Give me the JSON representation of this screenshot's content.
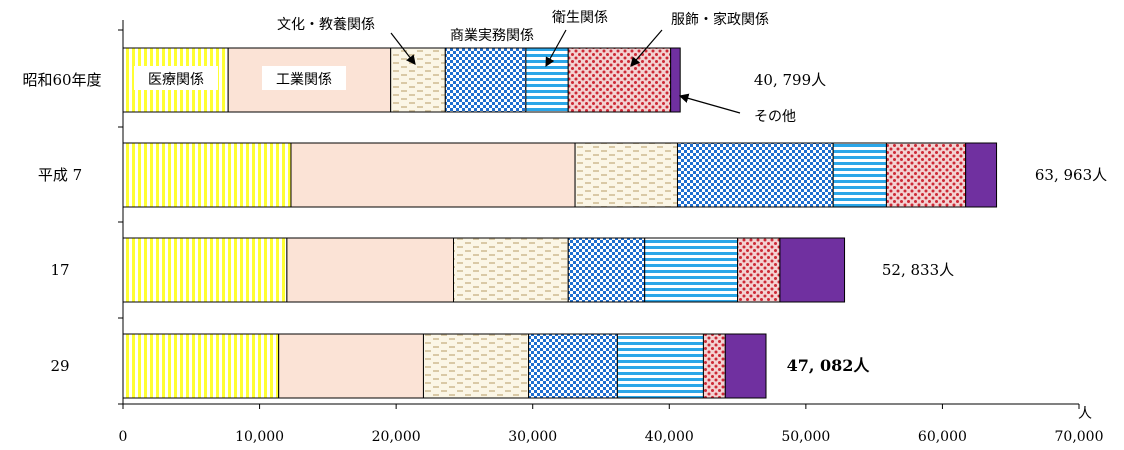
{
  "chart_data": {
    "type": "bar",
    "orientation": "horizontal",
    "stacked": true,
    "unit": "人",
    "xlim": [
      0,
      70000
    ],
    "x_ticks": [
      "0",
      "10,000",
      "20,000",
      "30,000",
      "40,000",
      "50,000",
      "60,000",
      "70,000"
    ],
    "categories": [
      "昭和60年度",
      "平成 7",
      "17",
      "29"
    ],
    "series": [
      {
        "name": "医療関係",
        "values": [
          7700,
          12300,
          12000,
          11400
        ],
        "color": "#ffff33",
        "pattern": "vstripe"
      },
      {
        "name": "工業関係",
        "values": [
          11900,
          20800,
          12200,
          10600
        ],
        "color": "#fbe3d6",
        "pattern": "solid"
      },
      {
        "name": "文化・教養関係",
        "values": [
          4000,
          7500,
          8400,
          7700
        ],
        "color": "#f4a860",
        "pattern": "dash"
      },
      {
        "name": "商業実務関係",
        "values": [
          5900,
          11400,
          5600,
          6500
        ],
        "color": "#1f6fd0",
        "pattern": "check"
      },
      {
        "name": "衛生関係",
        "values": [
          3100,
          3900,
          6800,
          6300
        ],
        "color": "#2ba6e8",
        "pattern": "hstripe"
      },
      {
        "name": "服飾・家政関係",
        "values": [
          7500,
          5800,
          3100,
          1600
        ],
        "color": "#cc2936",
        "pattern": "dots"
      },
      {
        "name": "その他",
        "values": [
          699,
          2263,
          4733,
          2982
        ],
        "color": "#7030a0",
        "pattern": "solid"
      }
    ],
    "totals": [
      "40, 799人",
      "63, 963人",
      "52, 833人",
      "47, 082人"
    ],
    "inbar_labels": [
      "医療関係",
      "工業関係"
    ],
    "callouts": [
      "文化・教養関係",
      "商業実務関係",
      "衛生関係",
      "服飾・家政関係",
      "その他"
    ]
  }
}
